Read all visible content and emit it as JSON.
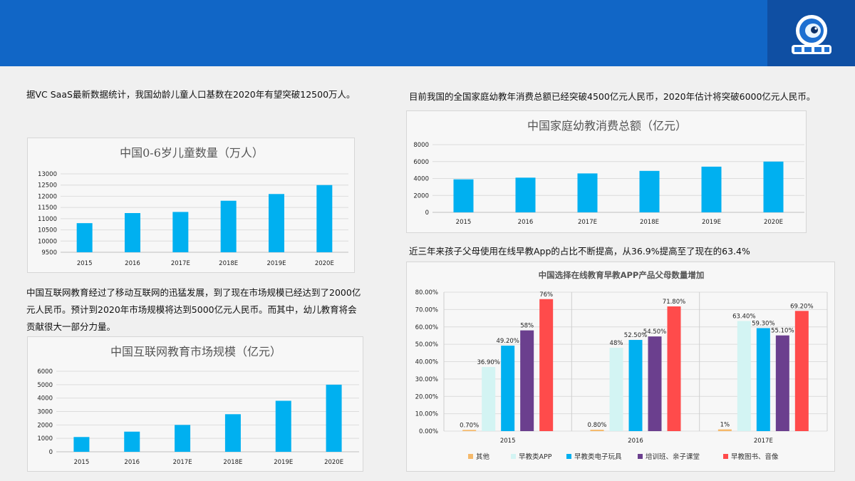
{
  "texts": {
    "p1": "据VC SaaS最新数据统计，我国幼龄儿童人口基数在2020年有望突破12500万人。",
    "p2": "目前我国的全国家庭幼教年消费总额已经突破4500亿元人民币，2020年估计将突破6000亿元人民币。",
    "p3": "中国互联网教育经过了移动互联网的迅猛发展，到了现在市场规模已经达到了2000亿元人民币。预计到2020年市场规模将达到5000亿元人民币。而其中，幼儿教育将会贡献很大一部分力量。",
    "p4": "近三年来孩子父母使用在线早教App的占比不断提高，从36.9%提高至了现在的63.4%"
  },
  "logo": {
    "icon": "robot-mascot-icon",
    "bg": "#0f4fa3"
  },
  "colors": {
    "header": "#1166c6",
    "bar": "#00b0f0"
  },
  "chart_data": [
    {
      "type": "bar",
      "title": "中国0-6岁儿童数量（万人）",
      "categories": [
        "2015",
        "2016",
        "2017E",
        "2018E",
        "2019E",
        "2020E"
      ],
      "values": [
        10800,
        11250,
        11300,
        11800,
        12100,
        12500
      ],
      "ylim": [
        9500,
        13000
      ],
      "yticks": [
        "9500",
        "10000",
        "10500",
        "11000",
        "11500",
        "12000",
        "12500",
        "13000"
      ],
      "grid": true
    },
    {
      "type": "bar",
      "title": "中国家庭幼教消费总额（亿元）",
      "categories": [
        "2015",
        "2016",
        "2017E",
        "2018E",
        "2019E",
        "2020E"
      ],
      "values": [
        3900,
        4100,
        4600,
        4900,
        5400,
        6000
      ],
      "ylim": [
        0,
        8000
      ],
      "yticks": [
        "0",
        "2000",
        "4000",
        "6000",
        "8000"
      ],
      "grid": true
    },
    {
      "type": "bar",
      "title": "中国互联网教育市场规模（亿元）",
      "categories": [
        "2015",
        "2016",
        "2017E",
        "2018E",
        "2019E",
        "2020E"
      ],
      "values": [
        1100,
        1500,
        2000,
        2800,
        3800,
        5000
      ],
      "ylim": [
        0,
        6000
      ],
      "yticks": [
        "0",
        "1000",
        "2000",
        "3000",
        "4000",
        "5000",
        "6000"
      ],
      "grid": true
    },
    {
      "type": "bar",
      "title": "中国选择在线教育早教APP产品父母数量增加",
      "categories": [
        "2015",
        "2016",
        "2017E"
      ],
      "ylim": [
        0,
        80
      ],
      "yticks": [
        "0.00%",
        "10.00%",
        "20.00%",
        "30.00%",
        "40.00%",
        "50.00%",
        "60.00%",
        "70.00%",
        "80.00%"
      ],
      "legend": "bottom",
      "series": [
        {
          "name": "其他",
          "color": "#f5b96a",
          "values": [
            0.7,
            0.8,
            1
          ],
          "labels": [
            "0.70%",
            "0.80%",
            "1%"
          ]
        },
        {
          "name": "早教类APP",
          "color": "#d3f4f3",
          "values": [
            36.9,
            48,
            63.4
          ],
          "labels": [
            "36.90%",
            "48%",
            "63.40%"
          ]
        },
        {
          "name": "早教类电子玩具",
          "color": "#00b0f0",
          "values": [
            49.2,
            52.5,
            59.3
          ],
          "labels": [
            "49.20%",
            "52.50%",
            "59.30%"
          ]
        },
        {
          "name": "培训班、亲子课堂",
          "color": "#6b3f8e",
          "values": [
            58,
            54.5,
            55.1
          ],
          "labels": [
            "58%",
            "54.50%",
            "55.10%"
          ]
        },
        {
          "name": "早教图书、音像",
          "color": "#ff4b4b",
          "values": [
            76,
            71.8,
            69.2
          ],
          "labels": [
            "76%",
            "71.80%",
            "69.20%"
          ]
        }
      ]
    }
  ]
}
